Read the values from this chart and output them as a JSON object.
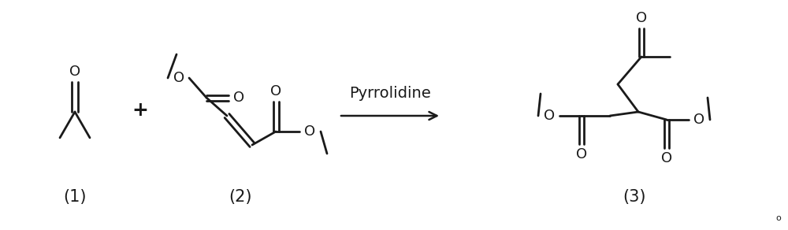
{
  "bg_color": "#ffffff",
  "line_color": "#1a1a1a",
  "line_width": 2.0,
  "font_size_label": 15,
  "font_size_catalyst": 14,
  "font_size_atom": 13,
  "label1": "(1)",
  "label2": "(2)",
  "label3": "(3)",
  "catalyst_text": "Pyrrolidine",
  "figsize": [
    10.0,
    2.92
  ],
  "dpi": 100
}
